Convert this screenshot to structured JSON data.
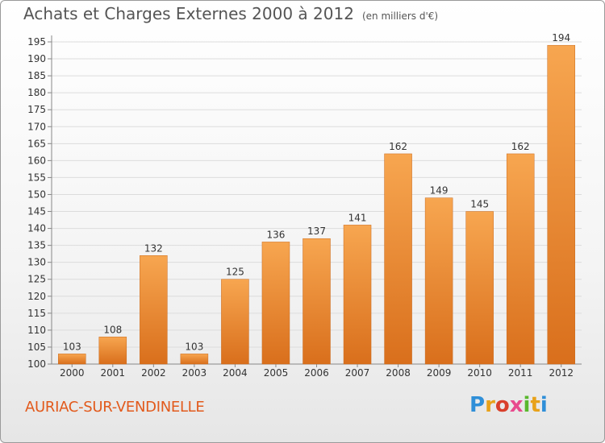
{
  "header": {
    "title": "Achats et Charges Externes 2000 à 2012",
    "subtitle": "(en milliers d'€)"
  },
  "footer": {
    "town": "AURIAC-SUR-VENDINELLE",
    "logo": [
      "P",
      "r",
      "o",
      "x",
      "i",
      "t",
      "i"
    ]
  },
  "colors": {
    "bar_light": "#f7a650",
    "bar_dark": "#d96f1c",
    "title_text": "#555555",
    "town_text": "#e25a1c"
  },
  "chart_data": {
    "type": "bar",
    "title": "Achats et Charges Externes 2000 à 2012",
    "subtitle": "(en milliers d'€)",
    "categories": [
      "2000",
      "2001",
      "2002",
      "2003",
      "2004",
      "2005",
      "2006",
      "2007",
      "2008",
      "2009",
      "2010",
      "2011",
      "2012"
    ],
    "values": [
      103,
      108,
      132,
      103,
      125,
      136,
      137,
      141,
      162,
      149,
      145,
      162,
      194
    ],
    "ylim": [
      100,
      195
    ],
    "yticks": [
      100,
      105,
      110,
      115,
      120,
      125,
      130,
      135,
      140,
      145,
      150,
      155,
      160,
      165,
      170,
      175,
      180,
      185,
      190,
      195
    ],
    "grid": true,
    "data_labels": true
  }
}
